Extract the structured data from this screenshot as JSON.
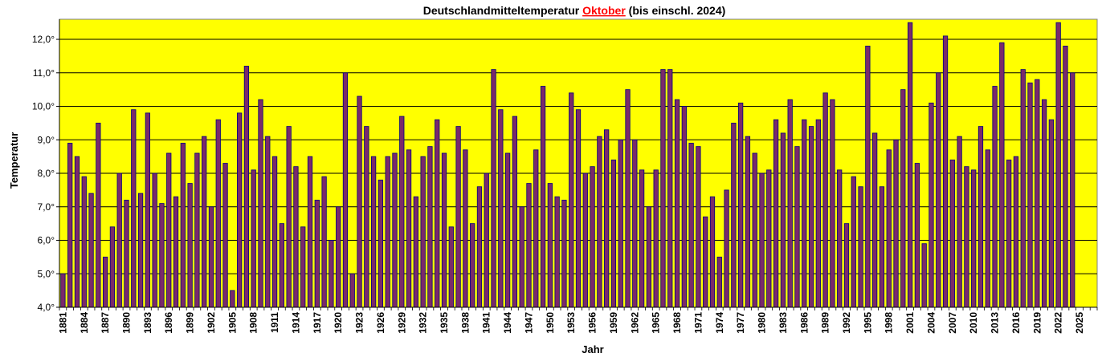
{
  "chart_data": {
    "type": "bar",
    "title_parts": [
      "Deutschlandmitteltemperatur ",
      "Oktober",
      " (bis einschl. 2024)"
    ],
    "title_highlight_color": "#ff0000",
    "xlabel": "Jahr",
    "ylabel": "Temperatur",
    "ylim": [
      4.0,
      12.6
    ],
    "yticks": [
      "4,0°",
      "5,0°",
      "6,0°",
      "7,0°",
      "8,0°",
      "9,0°",
      "10,0°",
      "11,0°",
      "12,0°"
    ],
    "yticks_values": [
      4,
      5,
      6,
      7,
      8,
      9,
      10,
      11,
      12
    ],
    "x_start": 1881,
    "x_end": 2027,
    "xticks": [
      "1881",
      "1884",
      "1887",
      "1890",
      "1893",
      "1896",
      "1899",
      "1902",
      "1905",
      "1908",
      "1911",
      "1914",
      "1917",
      "1920",
      "1923",
      "1926",
      "1929",
      "1932",
      "1935",
      "1938",
      "1941",
      "1944",
      "1947",
      "1950",
      "1953",
      "1956",
      "1959",
      "1962",
      "1965",
      "1968",
      "1971",
      "1974",
      "1977",
      "1980",
      "1983",
      "1986",
      "1989",
      "1992",
      "1995",
      "1998",
      "2001",
      "2004",
      "2007",
      "2010",
      "2013",
      "2016",
      "2019",
      "2022",
      "2025"
    ],
    "grid": true,
    "plot_background": "#ffff00",
    "bar_color": "#7a2a6a",
    "bar_edge_color": "#000080",
    "years": [
      1881,
      1882,
      1883,
      1884,
      1885,
      1886,
      1887,
      1888,
      1889,
      1890,
      1891,
      1892,
      1893,
      1894,
      1895,
      1896,
      1897,
      1898,
      1899,
      1900,
      1901,
      1902,
      1903,
      1904,
      1905,
      1906,
      1907,
      1908,
      1909,
      1910,
      1911,
      1912,
      1913,
      1914,
      1915,
      1916,
      1917,
      1918,
      1919,
      1920,
      1921,
      1922,
      1923,
      1924,
      1925,
      1926,
      1927,
      1928,
      1929,
      1930,
      1931,
      1932,
      1933,
      1934,
      1935,
      1936,
      1937,
      1938,
      1939,
      1940,
      1941,
      1942,
      1943,
      1944,
      1945,
      1946,
      1947,
      1948,
      1949,
      1950,
      1951,
      1952,
      1953,
      1954,
      1955,
      1956,
      1957,
      1958,
      1959,
      1960,
      1961,
      1962,
      1963,
      1964,
      1965,
      1966,
      1967,
      1968,
      1969,
      1970,
      1971,
      1972,
      1973,
      1974,
      1975,
      1976,
      1977,
      1978,
      1979,
      1980,
      1981,
      1982,
      1983,
      1984,
      1985,
      1986,
      1987,
      1988,
      1989,
      1990,
      1991,
      1992,
      1993,
      1994,
      1995,
      1996,
      1997,
      1998,
      1999,
      2000,
      2001,
      2002,
      2003,
      2004,
      2005,
      2006,
      2007,
      2008,
      2009,
      2010,
      2011,
      2012,
      2013,
      2014,
      2015,
      2016,
      2017,
      2018,
      2019,
      2020,
      2021,
      2022,
      2023,
      2024
    ],
    "values": [
      5.0,
      8.9,
      8.5,
      7.9,
      7.4,
      9.5,
      5.5,
      6.4,
      8.0,
      7.2,
      9.9,
      7.4,
      9.8,
      8.0,
      7.1,
      8.6,
      7.3,
      8.9,
      7.7,
      8.6,
      9.1,
      7.0,
      9.6,
      8.3,
      4.5,
      9.8,
      11.2,
      8.1,
      10.2,
      9.1,
      8.5,
      6.5,
      9.4,
      8.2,
      6.4,
      8.5,
      7.2,
      7.9,
      6.0,
      7.0,
      11.0,
      5.0,
      10.3,
      9.4,
      8.5,
      7.8,
      8.5,
      8.6,
      9.7,
      8.7,
      7.3,
      8.5,
      8.8,
      9.6,
      8.6,
      6.4,
      9.4,
      8.7,
      6.5,
      7.6,
      8.0,
      11.1,
      9.9,
      8.6,
      9.7,
      7.0,
      7.7,
      8.7,
      10.6,
      7.7,
      7.3,
      7.2,
      10.4,
      9.9,
      8.0,
      8.2,
      9.1,
      9.3,
      8.4,
      9.0,
      10.5,
      9.0,
      8.1,
      7.0,
      8.1,
      11.1,
      11.1,
      10.2,
      10.0,
      8.9,
      8.8,
      6.7,
      7.3,
      5.5,
      7.5,
      9.5,
      10.1,
      9.1,
      8.6,
      8.0,
      8.1,
      9.6,
      9.2,
      10.2,
      8.8,
      9.6,
      9.4,
      9.6,
      10.4,
      10.2,
      8.1,
      6.5,
      7.9,
      7.6,
      11.8,
      9.2,
      7.6,
      8.7,
      9.0,
      10.5,
      12.5,
      8.3,
      5.9,
      10.1,
      11.0,
      12.1,
      8.4,
      9.1,
      8.2,
      8.1,
      9.4,
      8.7,
      10.6,
      11.9,
      8.4,
      8.5,
      11.1,
      10.7,
      10.8,
      10.2,
      9.6,
      12.5,
      11.8,
      11.0
    ]
  }
}
